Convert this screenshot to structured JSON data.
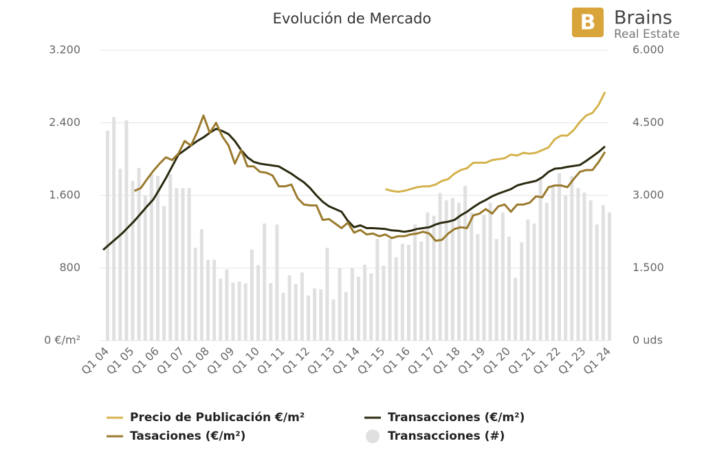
{
  "brand": {
    "name": "Brains",
    "tagline": "Real Estate"
  },
  "chart_data": {
    "type": "line",
    "title": "Evolución de Mercado",
    "categories": [
      "Q1 04",
      null,
      null,
      null,
      "Q1 05",
      null,
      null,
      null,
      "Q1 06",
      null,
      null,
      null,
      "Q1 07",
      null,
      null,
      null,
      "Q1 08",
      null,
      null,
      null,
      "Q1 09",
      null,
      null,
      null,
      "Q1 10",
      null,
      null,
      null,
      "Q1 11",
      null,
      null,
      null,
      "Q1 12",
      null,
      null,
      null,
      "Q1 13",
      null,
      null,
      null,
      "Q1 14",
      null,
      null,
      null,
      "Q1 15",
      null,
      null,
      null,
      "Q1 16",
      null,
      null,
      null,
      "Q1 17",
      null,
      null,
      null,
      "Q1 18",
      null,
      null,
      null,
      "Q1 19",
      null,
      null,
      null,
      "Q1 20",
      null,
      null,
      null,
      "Q1 21",
      null,
      null,
      null,
      "Q1 22",
      null,
      null,
      null,
      "Q1 23",
      null,
      null,
      null,
      "Q1 24"
    ],
    "series": [
      {
        "name": "Precio de Publicación €/m²",
        "type": "line",
        "color": "#d4b24c",
        "values": [
          null,
          null,
          null,
          null,
          null,
          null,
          null,
          null,
          null,
          null,
          null,
          null,
          null,
          null,
          null,
          null,
          null,
          null,
          null,
          null,
          null,
          null,
          null,
          null,
          null,
          null,
          null,
          null,
          null,
          null,
          null,
          null,
          null,
          null,
          null,
          null,
          null,
          null,
          null,
          null,
          null,
          null,
          null,
          null,
          null,
          1670,
          1650,
          1640,
          1650,
          1670,
          1690,
          1700,
          1700,
          1720,
          1760,
          1780,
          1840,
          1880,
          1900,
          1960,
          1960,
          1960,
          1990,
          2000,
          2010,
          2050,
          2040,
          2070,
          2060,
          2070,
          2100,
          2130,
          2220,
          2260,
          2260,
          2320,
          2410,
          2480,
          2510,
          2600,
          2740
        ]
      },
      {
        "name": "Transacciones (€/m²)",
        "type": "line",
        "color": "#2b2a10",
        "values": [
          1000,
          1060,
          1120,
          1180,
          1250,
          1320,
          1400,
          1480,
          1555,
          1670,
          1790,
          1920,
          2050,
          2100,
          2150,
          2200,
          2240,
          2290,
          2335,
          2310,
          2275,
          2200,
          2100,
          2020,
          1970,
          1950,
          1940,
          1930,
          1920,
          1880,
          1840,
          1790,
          1745,
          1680,
          1600,
          1530,
          1480,
          1450,
          1420,
          1320,
          1250,
          1270,
          1240,
          1240,
          1235,
          1230,
          1215,
          1210,
          1200,
          1210,
          1230,
          1240,
          1250,
          1280,
          1300,
          1310,
          1330,
          1380,
          1420,
          1470,
          1515,
          1550,
          1590,
          1620,
          1645,
          1670,
          1710,
          1730,
          1745,
          1760,
          1800,
          1860,
          1895,
          1900,
          1915,
          1925,
          1935,
          1980,
          2030,
          2080,
          2140
        ]
      },
      {
        "name": "Tasaciones (€/m²)",
        "type": "line",
        "color": "#9a7a2c",
        "values": [
          null,
          null,
          null,
          null,
          null,
          1650,
          1680,
          1780,
          1870,
          1950,
          2020,
          1990,
          2060,
          2200,
          2150,
          2300,
          2480,
          2290,
          2400,
          2250,
          2150,
          1950,
          2100,
          1920,
          1920,
          1860,
          1850,
          1820,
          1700,
          1700,
          1720,
          1570,
          1500,
          1490,
          1490,
          1330,
          1340,
          1290,
          1240,
          1300,
          1190,
          1220,
          1170,
          1180,
          1150,
          1170,
          1130,
          1150,
          1150,
          1170,
          1180,
          1200,
          1180,
          1100,
          1110,
          1180,
          1230,
          1250,
          1240,
          1380,
          1400,
          1450,
          1400,
          1480,
          1500,
          1420,
          1500,
          1500,
          1520,
          1590,
          1580,
          1690,
          1710,
          1710,
          1690,
          1780,
          1860,
          1880,
          1880,
          1970,
          2080
        ]
      },
      {
        "name": "Transacciones (#)",
        "type": "bar",
        "axis": "y2",
        "color": "#e0e0e0",
        "values": [
          4340,
          4620,
          3550,
          4550,
          3300,
          3570,
          3000,
          3430,
          3400,
          2780,
          3440,
          3150,
          3150,
          3150,
          1920,
          2300,
          1670,
          1670,
          1280,
          1470,
          1200,
          1220,
          1180,
          1880,
          1560,
          2420,
          1190,
          2400,
          990,
          1350,
          1170,
          1410,
          930,
          1080,
          1060,
          1920,
          850,
          1500,
          1000,
          1500,
          1320,
          1570,
          1390,
          2100,
          1550,
          2100,
          1720,
          2000,
          1980,
          2400,
          2050,
          2650,
          2580,
          3050,
          2900,
          2950,
          2850,
          3200,
          2650,
          2200,
          2600,
          2850,
          2100,
          2650,
          2150,
          1300,
          2030,
          2500,
          2420,
          3350,
          2850,
          3200,
          3460,
          3000,
          3400,
          3150,
          3060,
          2900,
          2400,
          2800,
          2650
        ]
      }
    ],
    "ylim": [
      0,
      3200
    ],
    "yticks": [
      {
        "value": 0,
        "label": "0 €/m²"
      },
      800,
      {
        "value": 1600,
        "label": "1.600"
      },
      {
        "value": 2400,
        "label": "2.400"
      },
      {
        "value": 3200,
        "label": "3.200"
      }
    ],
    "y2lim": [
      0,
      6000
    ],
    "y2ticks": [
      {
        "value": 0,
        "label": "0 uds"
      },
      {
        "value": 1500,
        "label": "1.500"
      },
      {
        "value": 3000,
        "label": "3.000"
      },
      {
        "value": 4500,
        "label": "4.500"
      },
      {
        "value": 6000,
        "label": "6.000"
      }
    ],
    "grid": true
  }
}
